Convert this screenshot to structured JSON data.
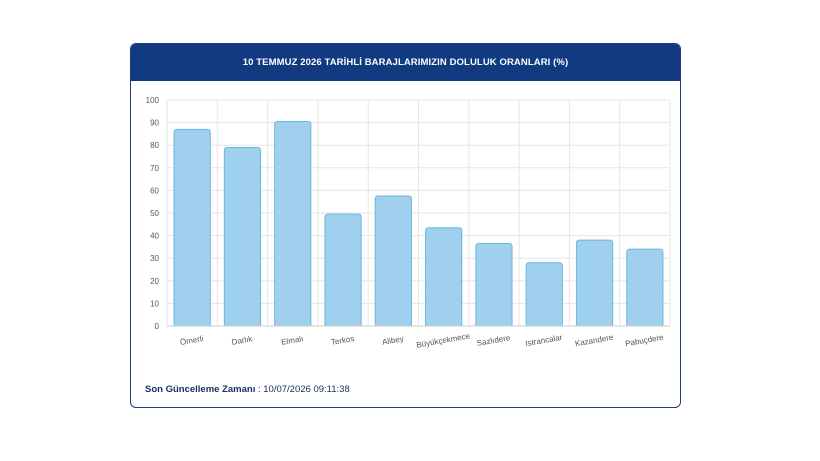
{
  "header": {
    "title": "10 TEMMUZ 2026 TARİHLİ BARAJLARIMIZIN DOLULUK ORANLARI (%)"
  },
  "footer": {
    "label": "Son Güncelleme Zamanı",
    "separator": " : ",
    "value": "10/07/2026 09:11:38"
  },
  "colors": {
    "header_bg": "#123a80",
    "bar_fill": "#9fd1ee",
    "bar_stroke": "#6db6e0",
    "grid": "#e6e6e6",
    "axis_text": "#555555"
  },
  "chart_data": {
    "type": "bar",
    "title": "10 TEMMUZ 2026 TARİHLİ BARAJLARIMIZIN DOLULUK ORANLARI (%)",
    "categories": [
      "Ömerli",
      "Darlık",
      "Elmalı",
      "Terkos",
      "Alibey",
      "Büyükçekmece",
      "Sazlıdere",
      "Istrancalar",
      "Kazandere",
      "Pabuçdere"
    ],
    "values": [
      87,
      79,
      90.5,
      49.5,
      57.5,
      43.5,
      36.5,
      28,
      38,
      34
    ],
    "xlabel": "",
    "ylabel": "",
    "ylim": [
      0,
      100
    ],
    "yticks": [
      0,
      10,
      20,
      30,
      40,
      50,
      60,
      70,
      80,
      90,
      100
    ],
    "grid": true,
    "legend": "none"
  }
}
